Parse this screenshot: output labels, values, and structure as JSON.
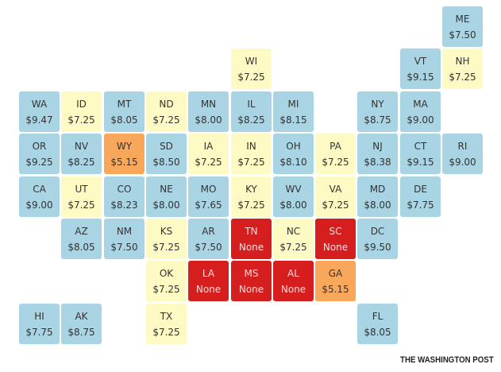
{
  "rows": [
    [
      null,
      null,
      null,
      null,
      null,
      null,
      null,
      null,
      null,
      null,
      {
        "state": "ME",
        "wage": "$7.50",
        "color": "#a9d4e4"
      }
    ],
    [
      null,
      null,
      null,
      null,
      null,
      {
        "state": "WI",
        "wage": "$7.25",
        "color": "#fdfac3"
      },
      null,
      null,
      null,
      {
        "state": "VT",
        "wage": "$9.15",
        "color": "#a9d4e4"
      },
      {
        "state": "NH",
        "wage": "$7.25",
        "color": "#fdfac3"
      }
    ],
    [
      {
        "state": "WA",
        "wage": "$9.47",
        "color": "#a9d4e4"
      },
      {
        "state": "ID",
        "wage": "$7.25",
        "color": "#fdfac3"
      },
      {
        "state": "MT",
        "wage": "$8.05",
        "color": "#a9d4e4"
      },
      {
        "state": "ND",
        "wage": "$7.25",
        "color": "#fdfac3"
      },
      {
        "state": "MN",
        "wage": "$8.00",
        "color": "#a9d4e4"
      },
      {
        "state": "IL",
        "wage": "$8.25",
        "color": "#a9d4e4"
      },
      {
        "state": "MI",
        "wage": "$8.15",
        "color": "#a9d4e4"
      },
      null,
      {
        "state": "NY",
        "wage": "$8.75",
        "color": "#a9d4e4"
      },
      {
        "state": "MA",
        "wage": "$9.00",
        "color": "#a9d4e4"
      }
    ],
    [
      {
        "state": "OR",
        "wage": "$9.25",
        "color": "#a9d4e4"
      },
      {
        "state": "NV",
        "wage": "$8.25",
        "color": "#a9d4e4"
      },
      {
        "state": "WY",
        "wage": "$5.15",
        "color": "#f9a75b"
      },
      {
        "state": "SD",
        "wage": "$8.50",
        "color": "#a9d4e4"
      },
      {
        "state": "IA",
        "wage": "$7.25",
        "color": "#fdfac3"
      },
      {
        "state": "IN",
        "wage": "$7.25",
        "color": "#fdfac3"
      },
      {
        "state": "OH",
        "wage": "$8.10",
        "color": "#a9d4e4"
      },
      {
        "state": "PA",
        "wage": "$7.25",
        "color": "#fdfac3"
      },
      {
        "state": "NJ",
        "wage": "$8.38",
        "color": "#a9d4e4"
      },
      {
        "state": "CT",
        "wage": "$9.15",
        "color": "#a9d4e4"
      },
      {
        "state": "RI",
        "wage": "$9.00",
        "color": "#a9d4e4"
      }
    ],
    [
      {
        "state": "CA",
        "wage": "$9.00",
        "color": "#a9d4e4"
      },
      {
        "state": "UT",
        "wage": "$7.25",
        "color": "#fdfac3"
      },
      {
        "state": "CO",
        "wage": "$8.23",
        "color": "#a9d4e4"
      },
      {
        "state": "NE",
        "wage": "$8.00",
        "color": "#a9d4e4"
      },
      {
        "state": "MO",
        "wage": "$7.65",
        "color": "#a9d4e4"
      },
      {
        "state": "KY",
        "wage": "$7.25",
        "color": "#fdfac3"
      },
      {
        "state": "WV",
        "wage": "$8.00",
        "color": "#a9d4e4"
      },
      {
        "state": "VA",
        "wage": "$7.25",
        "color": "#fdfac3"
      },
      {
        "state": "MD",
        "wage": "$8.00",
        "color": "#a9d4e4"
      },
      {
        "state": "DE",
        "wage": "$7.75",
        "color": "#a9d4e4"
      }
    ],
    [
      null,
      {
        "state": "AZ",
        "wage": "$8.05",
        "color": "#a9d4e4"
      },
      {
        "state": "NM",
        "wage": "$7.50",
        "color": "#a9d4e4"
      },
      {
        "state": "KS",
        "wage": "$7.25",
        "color": "#fdfac3"
      },
      {
        "state": "AR",
        "wage": "$7.50",
        "color": "#a9d4e4"
      },
      {
        "state": "TN",
        "wage": "None",
        "color": "#d71e1f"
      },
      {
        "state": "NC",
        "wage": "$7.25",
        "color": "#fdfac3"
      },
      {
        "state": "SC",
        "wage": "None",
        "color": "#d71e1f"
      },
      {
        "state": "DC",
        "wage": "$9.50",
        "color": "#a9d4e4"
      }
    ],
    [
      null,
      null,
      null,
      {
        "state": "OK",
        "wage": "$7.25",
        "color": "#fdfac3"
      },
      {
        "state": "LA",
        "wage": "None",
        "color": "#d71e1f"
      },
      {
        "state": "MS",
        "wage": "None",
        "color": "#d71e1f"
      },
      {
        "state": "AL",
        "wage": "None",
        "color": "#d71e1f"
      },
      {
        "state": "GA",
        "wage": "$5.15",
        "color": "#f9a75b"
      }
    ],
    [
      {
        "state": "HI",
        "wage": "$7.75",
        "color": "#a9d4e4"
      },
      {
        "state": "AK",
        "wage": "$8.75",
        "color": "#a9d4e4"
      },
      null,
      {
        "state": "TX",
        "wage": "$7.25",
        "color": "#fdfac3"
      },
      null,
      null,
      null,
      null,
      {
        "state": "FL",
        "wage": "$8.05",
        "color": "#a9d4e4"
      }
    ]
  ],
  "credit": "THE WASHINGTON POST"
}
